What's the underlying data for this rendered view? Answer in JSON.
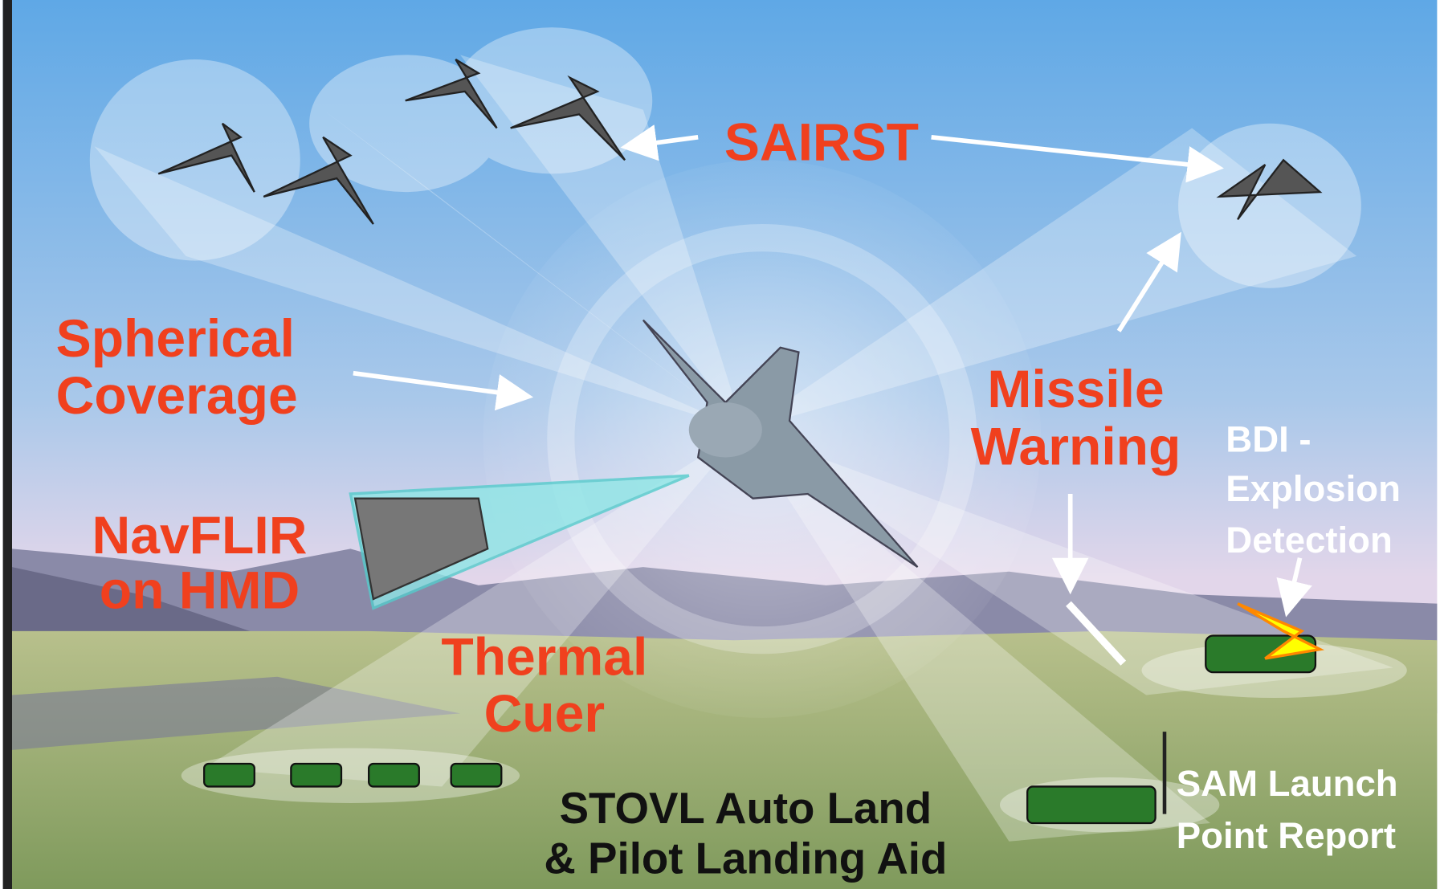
{
  "labels": {
    "sairst": [
      "SAIRST"
    ],
    "spherical": [
      "Spherical",
      "Coverage"
    ],
    "missile": [
      "Missile",
      "Warning"
    ],
    "bdi": [
      "BDI -",
      "Explosion",
      "Detection"
    ],
    "navflir": [
      "NavFLIR",
      "on HMD"
    ],
    "thermal": [
      "Thermal",
      "Cuer"
    ],
    "stovl": [
      "STOVL Auto Land",
      "& Pilot Landing Aid"
    ],
    "sam": [
      "SAM Launch",
      "Point Report"
    ]
  }
}
